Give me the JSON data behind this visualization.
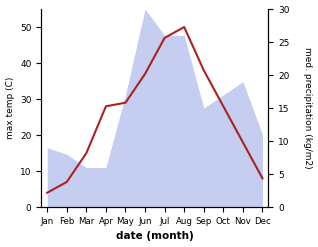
{
  "months": [
    "Jan",
    "Feb",
    "Mar",
    "Apr",
    "May",
    "Jun",
    "Jul",
    "Aug",
    "Sep",
    "Oct",
    "Nov",
    "Dec"
  ],
  "temperature": [
    4,
    7,
    15,
    28,
    29,
    37,
    47,
    50,
    38,
    28,
    18,
    8
  ],
  "precipitation": [
    9,
    8,
    6,
    6,
    17,
    30,
    26,
    26,
    15,
    17,
    19,
    11
  ],
  "temp_color": "#aa2222",
  "precip_fill_color": "#c5cdf0",
  "ylabel_left": "max temp (C)",
  "ylabel_right": "med. precipitation (kg/m2)",
  "xlabel": "date (month)",
  "ylim_left": [
    0,
    55
  ],
  "ylim_right": [
    0,
    30
  ],
  "yticks_left": [
    0,
    10,
    20,
    30,
    40,
    50
  ],
  "yticks_right": [
    0,
    5,
    10,
    15,
    20,
    25,
    30
  ],
  "bg_color": "#ffffff"
}
